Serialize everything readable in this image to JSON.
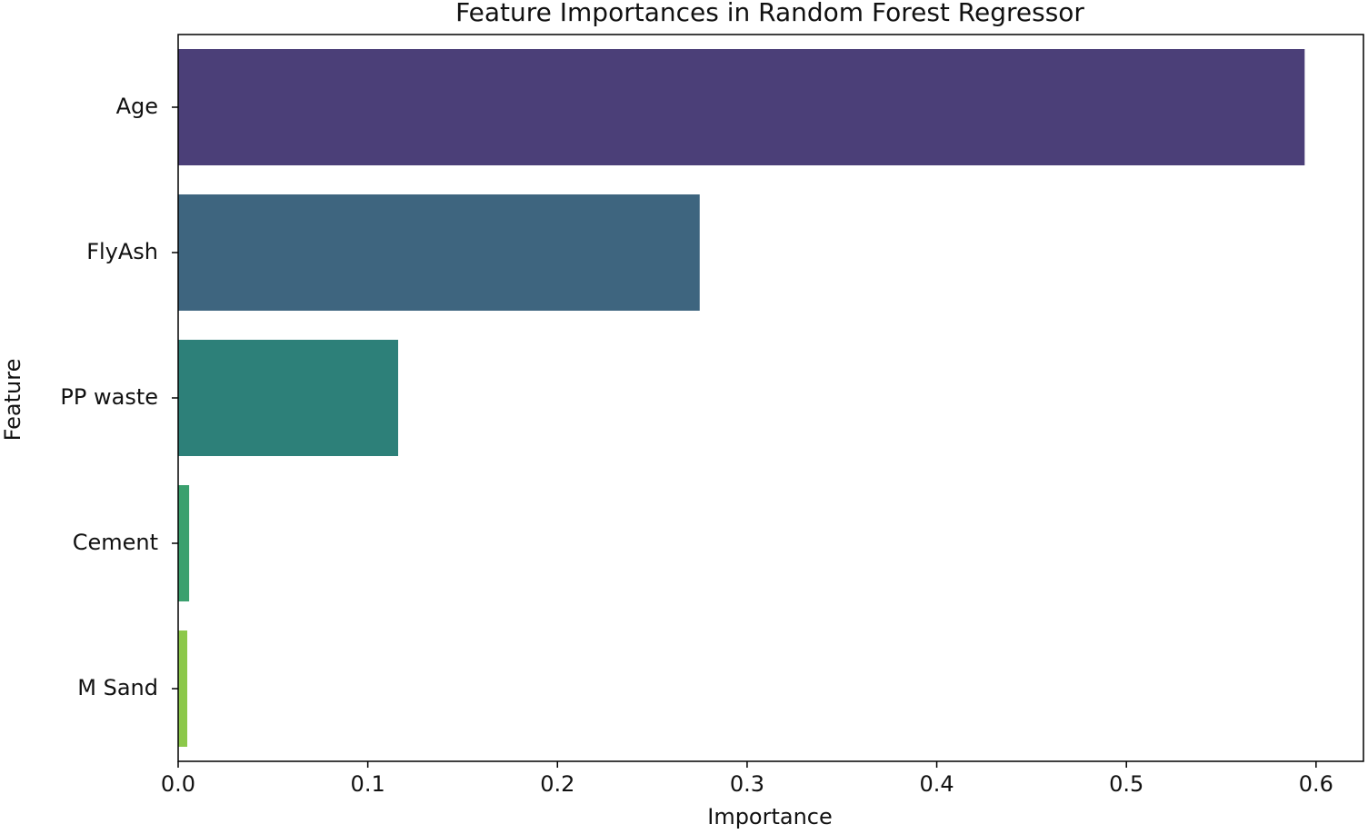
{
  "chart_data": {
    "type": "barh",
    "title": "Feature Importances in Random Forest Regressor",
    "xlabel": "Importance",
    "ylabel": "Feature",
    "categories": [
      "Age",
      "FlyAsh",
      "PP waste",
      "Cement",
      "M Sand"
    ],
    "values": [
      0.594,
      0.275,
      0.116,
      0.0058,
      0.0048
    ],
    "colors": [
      "#4b3f78",
      "#3e657f",
      "#2d8079",
      "#3aa06e",
      "#8cc84a"
    ],
    "xlim": [
      0,
      0.625
    ],
    "xticks": [
      {
        "value": 0,
        "label": "0.0"
      },
      0.1,
      0.2,
      0.3,
      0.4,
      0.5,
      0.6
    ],
    "grid": false
  }
}
